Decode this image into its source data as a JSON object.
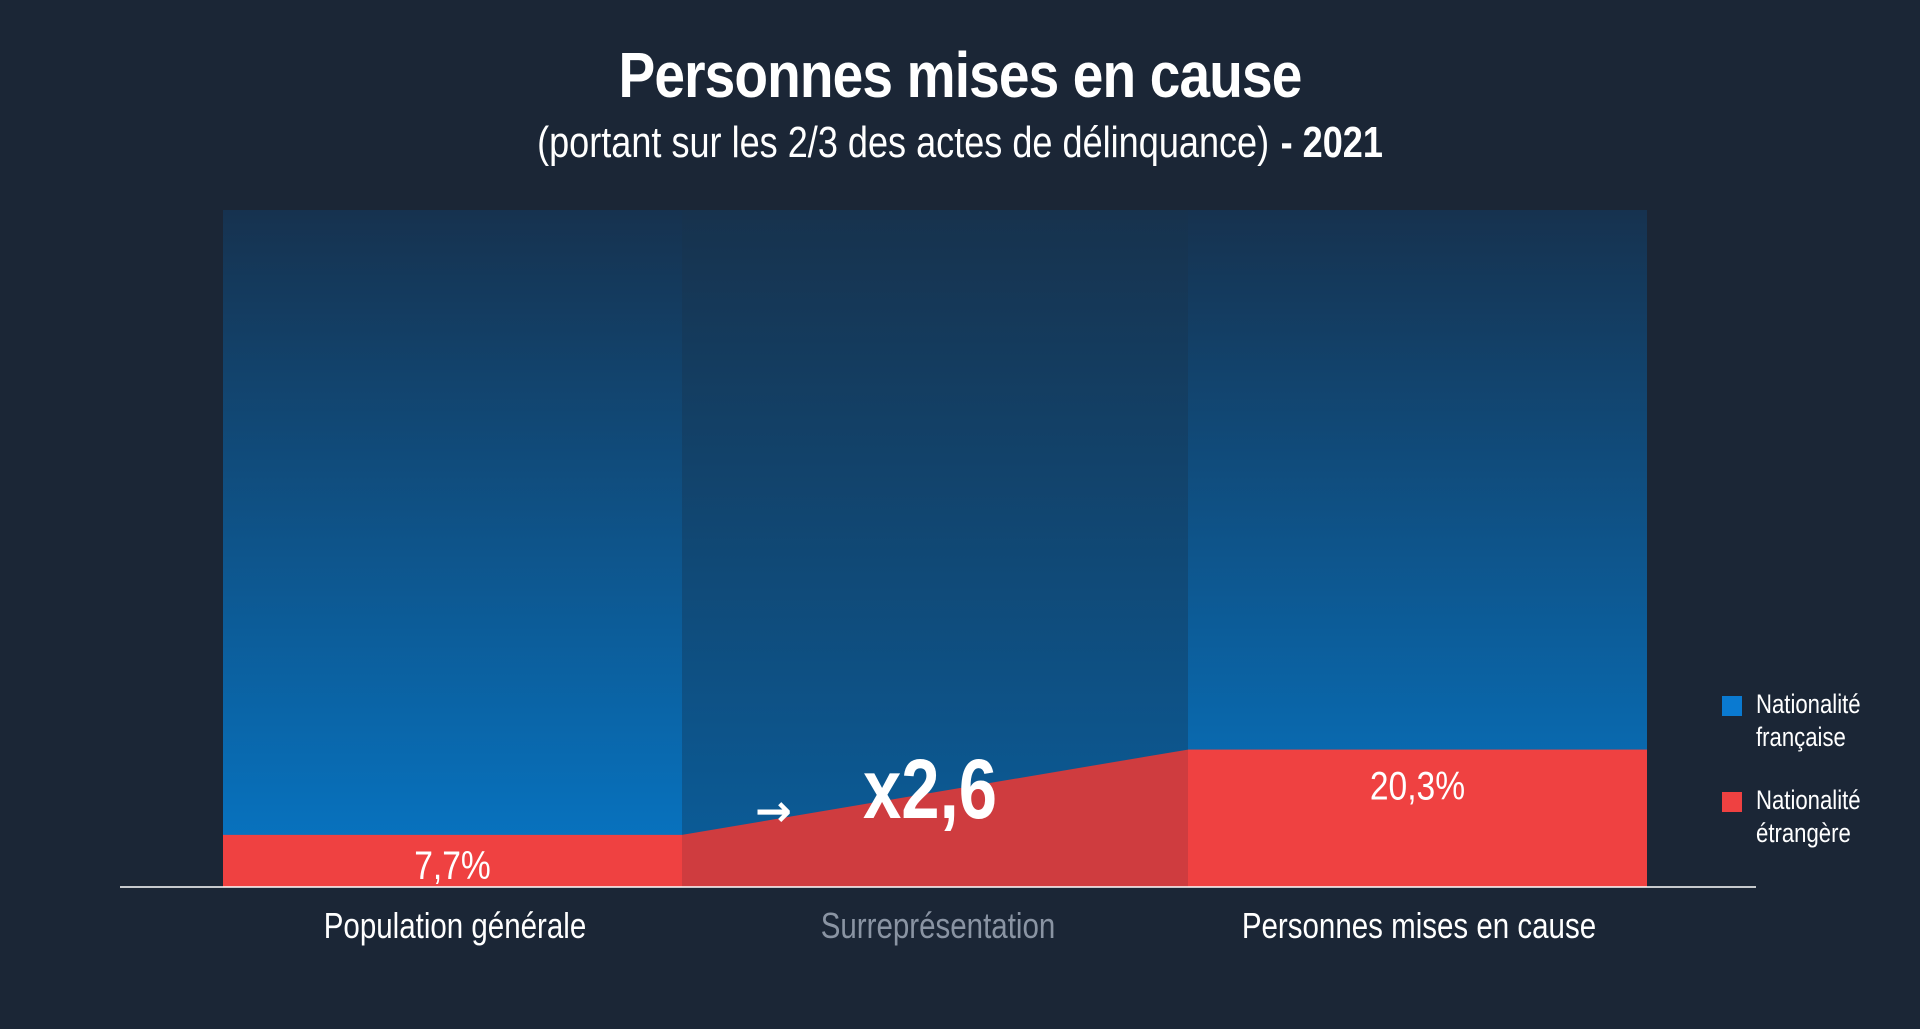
{
  "title": "Personnes mises en cause",
  "subtitle": "(portant sur les 2/3 des actes de délinquance)",
  "subtitle_year": "- 2021",
  "colors": {
    "background": "#1b2636",
    "french": "#0a7ad1",
    "foreign": "#ef4141",
    "foreign_transition": "#cf3c3f",
    "muted_label": "#8a94a3"
  },
  "chart_data": {
    "type": "bar",
    "stacked": true,
    "categories": [
      "Population générale",
      "Surreprésentation",
      "Personnes mises en cause"
    ],
    "series": [
      {
        "name": "Nationalité française",
        "values": [
          92.3,
          null,
          79.7
        ]
      },
      {
        "name": "Nationalité étrangère",
        "values": [
          7.7,
          null,
          20.3
        ]
      }
    ],
    "data_labels": [
      "7,7%",
      "20,3%"
    ],
    "annotation": {
      "arrow": "→",
      "text": "x2,6"
    },
    "ylim": [
      0,
      100
    ],
    "legend_position": "right"
  },
  "legend": {
    "items": [
      {
        "line1": "Nationalité",
        "line2": "française",
        "color": "#0a7ad1"
      },
      {
        "line1": "Nationalité",
        "line2": "étrangère",
        "color": "#ef4141"
      }
    ]
  }
}
